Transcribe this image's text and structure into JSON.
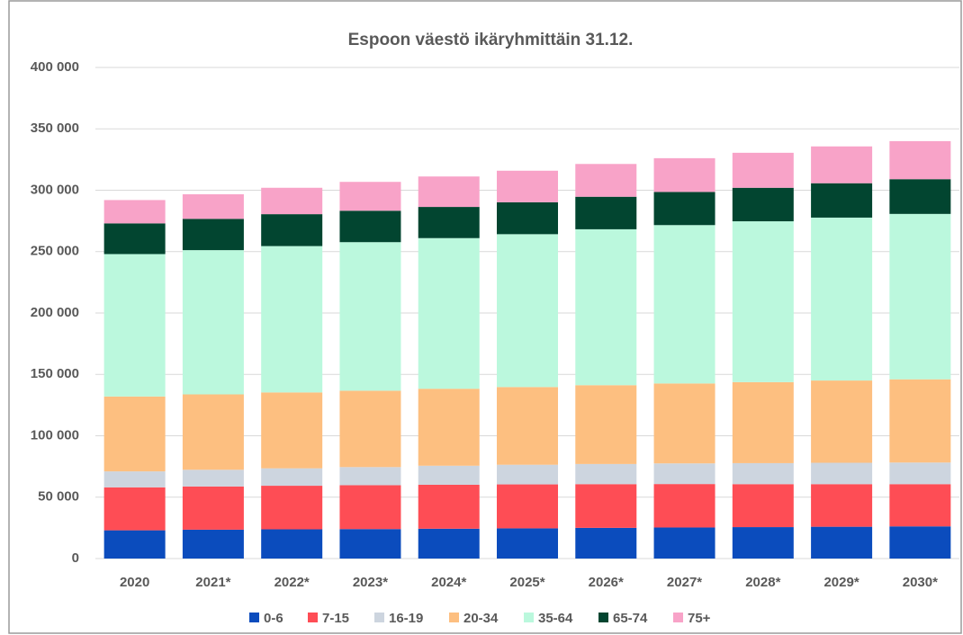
{
  "chart_data": {
    "type": "stacked_bar",
    "title": "Espoon väestö ikäryhmittäin 31.12.",
    "categories": [
      "2020",
      "2021*",
      "2022*",
      "2023*",
      "2024*",
      "2025*",
      "2026*",
      "2027*",
      "2028*",
      "2029*",
      "2030*"
    ],
    "series": [
      {
        "name": "0-6",
        "color": "#0b4cbd",
        "values": [
          23000,
          23500,
          23800,
          24000,
          24300,
          24600,
          25000,
          25300,
          25600,
          25900,
          26200
        ]
      },
      {
        "name": "7-15",
        "color": "#fe4d55",
        "values": [
          35000,
          35200,
          35500,
          35700,
          35800,
          35800,
          35600,
          35400,
          35000,
          34700,
          34400
        ]
      },
      {
        "name": "16-19",
        "color": "#cdd5df",
        "values": [
          13000,
          13600,
          14200,
          14800,
          15500,
          16000,
          16400,
          16800,
          17100,
          17400,
          17600
        ]
      },
      {
        "name": "20-34",
        "color": "#fdbf80",
        "values": [
          61000,
          61400,
          61800,
          62200,
          62700,
          63300,
          64200,
          65100,
          66000,
          67000,
          67800
        ]
      },
      {
        "name": "35-64",
        "color": "#bbf8dd",
        "values": [
          116000,
          117500,
          119200,
          121000,
          122700,
          124500,
          127000,
          129000,
          131000,
          132700,
          134700
        ]
      },
      {
        "name": "65-74",
        "color": "#024530",
        "values": [
          25000,
          25500,
          26000,
          25600,
          25400,
          26000,
          26500,
          27000,
          27300,
          28000,
          28300
        ]
      },
      {
        "name": "75+",
        "color": "#f8a3c8",
        "values": [
          19000,
          20000,
          21500,
          23500,
          24800,
          25700,
          26700,
          27500,
          28500,
          30000,
          31000
        ]
      }
    ],
    "ylim": [
      0,
      400000
    ],
    "yticks": [
      0,
      {
        "value": 50000,
        "label": "50 000"
      },
      {
        "value": 100000,
        "label": "100 000"
      },
      {
        "value": 150000,
        "label": "150 000"
      },
      {
        "value": 200000,
        "label": "200 000"
      },
      {
        "value": 250000,
        "label": "250 000"
      },
      {
        "value": 300000,
        "label": "300 000"
      },
      {
        "value": 350000,
        "label": "350 000"
      },
      {
        "value": 400000,
        "label": "400 000"
      }
    ],
    "grid": true,
    "legend": "bottom"
  }
}
